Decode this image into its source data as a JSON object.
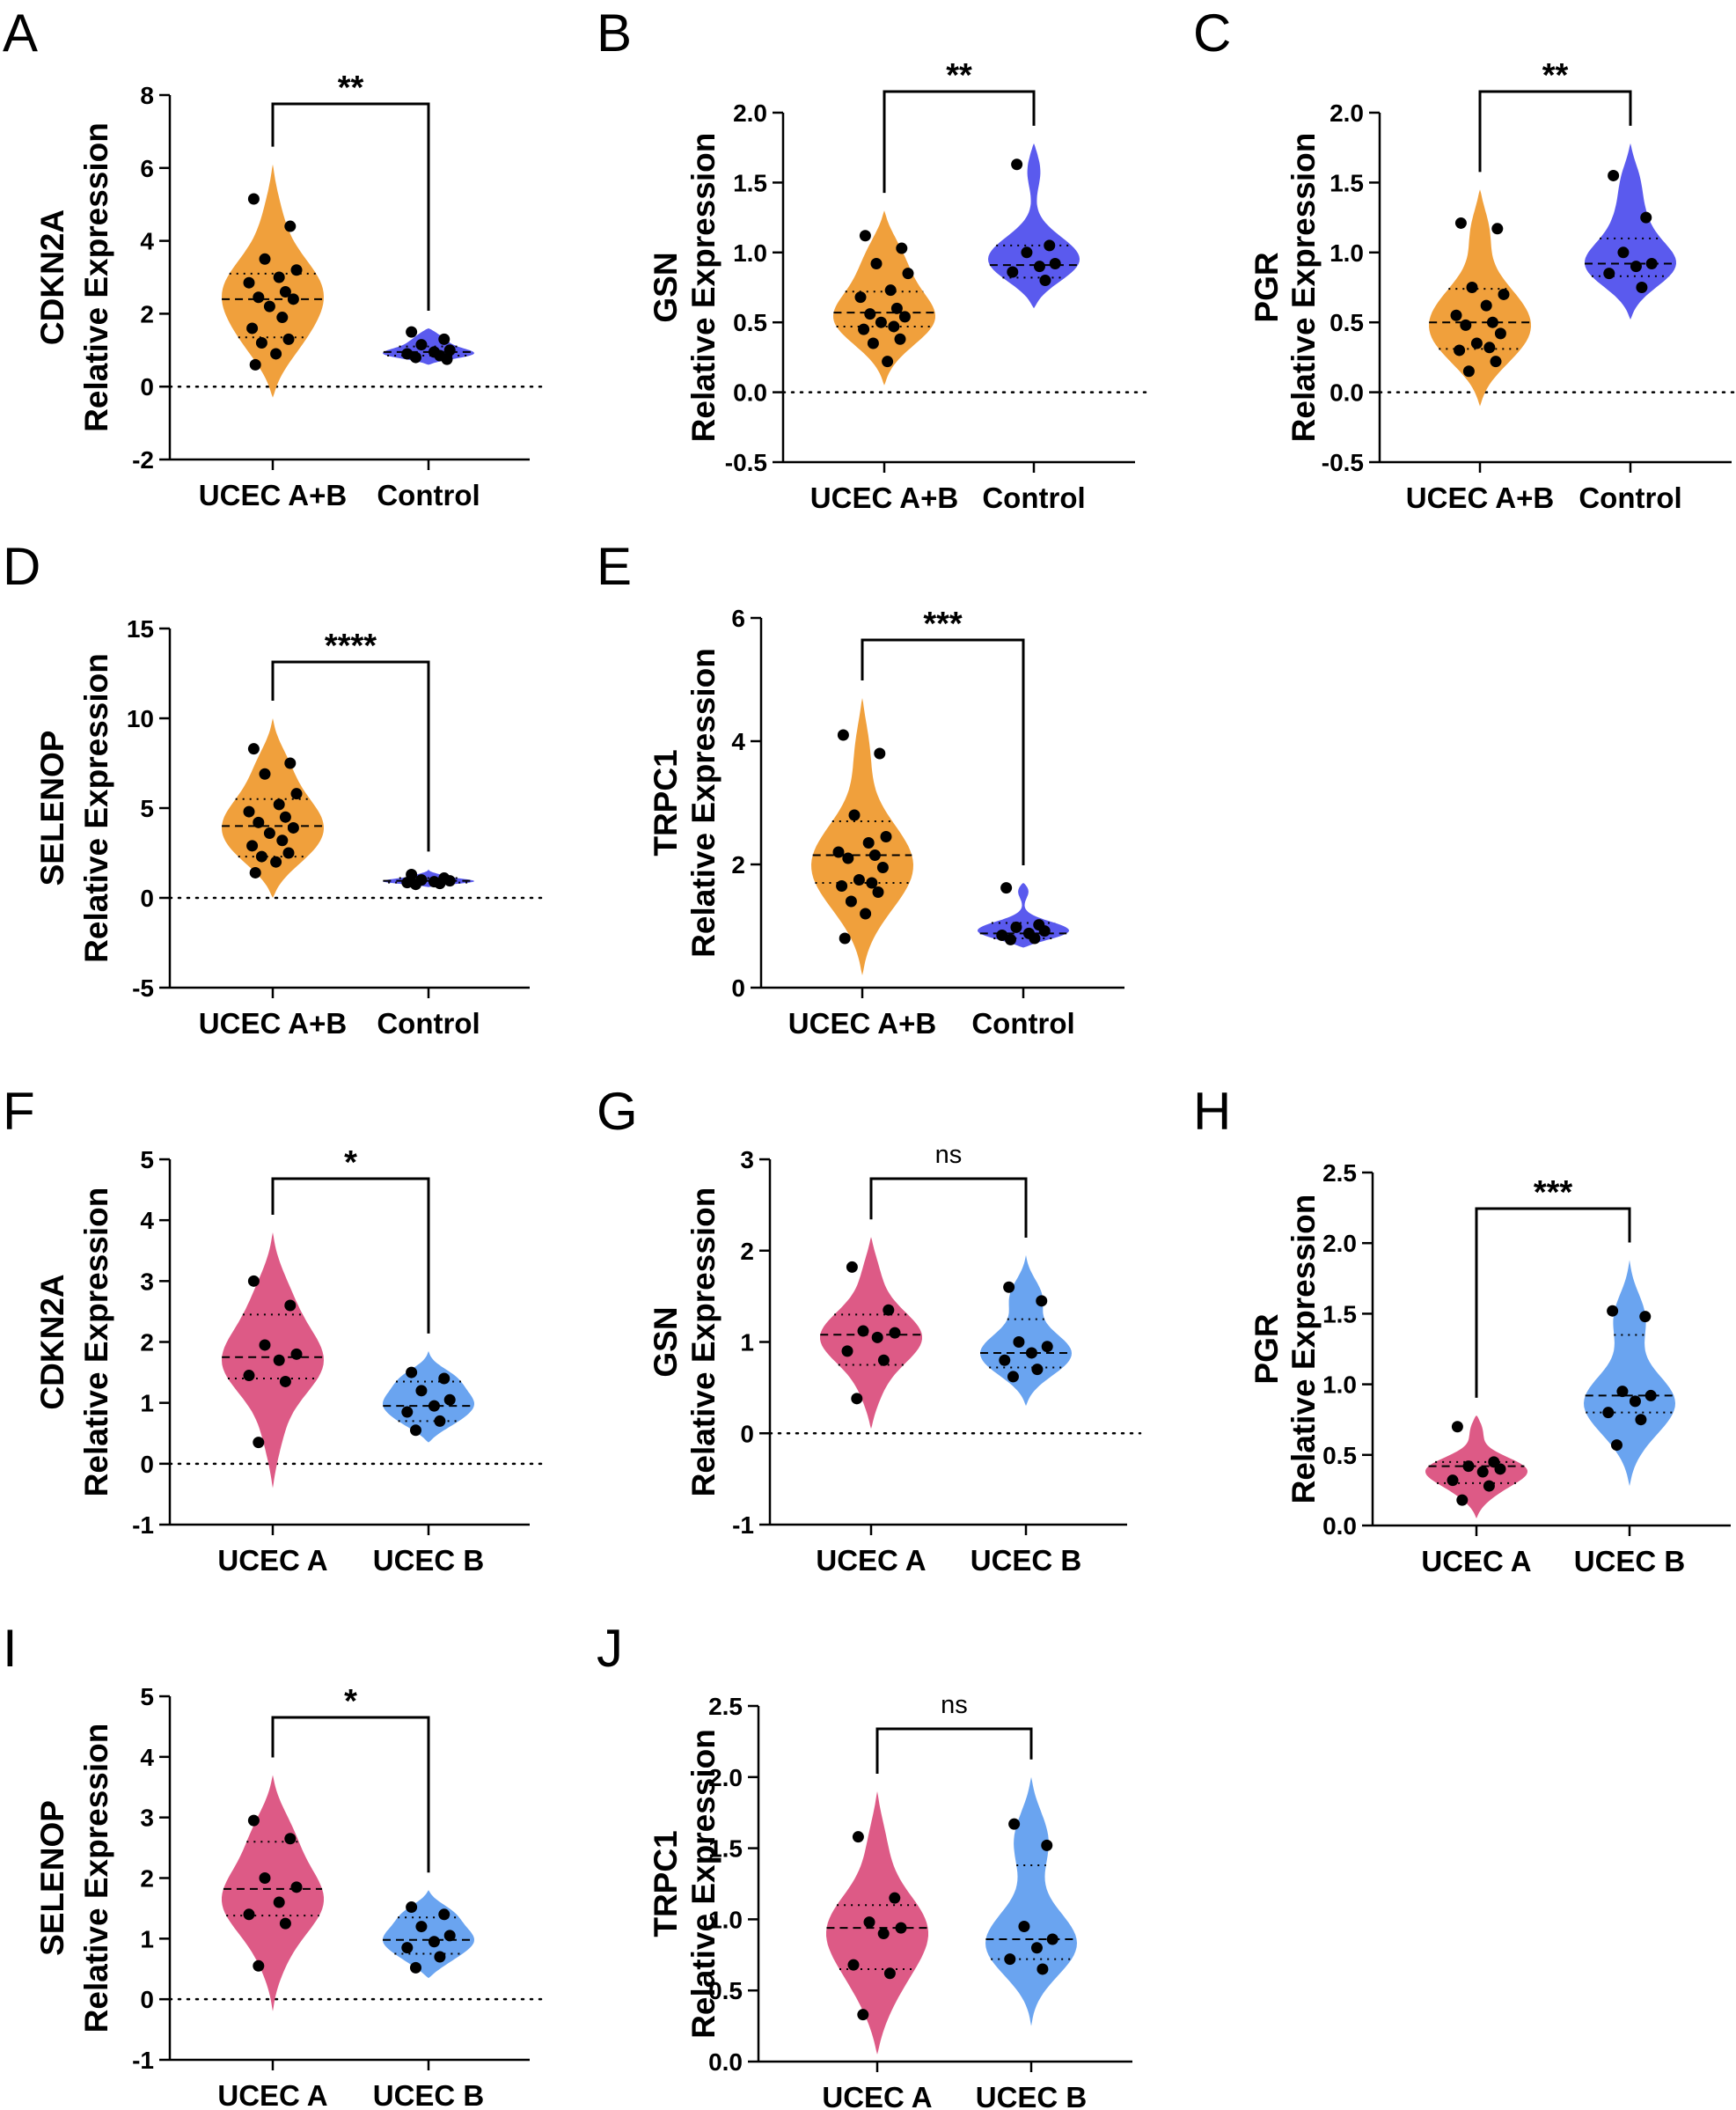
{
  "colors": {
    "ucec_ab": "#f0a03c",
    "control": "#5a5aee",
    "ucec_a": "#dd5a86",
    "ucec_b": "#6aa4f0",
    "point": "#000000",
    "axis": "#000000"
  },
  "chart_data": [
    {
      "panel": "A",
      "type": "violin",
      "ylabel_lines": [
        "CDKN2A",
        "Relative Expression"
      ],
      "ylim": [
        -2,
        8
      ],
      "yticks": [
        8,
        6,
        4,
        2,
        0,
        -2
      ],
      "zero_line": true,
      "significance": "**",
      "groups": [
        {
          "name": "UCEC A+B",
          "color_key": "ucec_ab",
          "median": 2.4,
          "q1": 1.35,
          "q3": 3.1,
          "min": -0.3,
          "max": 6.1,
          "values": [
            5.15,
            4.4,
            3.5,
            3.2,
            3.0,
            2.85,
            2.6,
            2.45,
            2.4,
            2.2,
            1.9,
            1.6,
            1.3,
            1.2,
            0.9,
            0.6
          ]
        },
        {
          "name": "Control",
          "color_key": "control",
          "median": 0.95,
          "q1": 0.85,
          "q3": 1.1,
          "min": 0.6,
          "max": 1.6,
          "values": [
            1.5,
            1.3,
            1.15,
            1.0,
            0.95,
            0.9,
            0.85,
            0.8,
            0.75
          ]
        }
      ]
    },
    {
      "panel": "B",
      "type": "violin",
      "ylabel_lines": [
        "GSN",
        "Relative Expression"
      ],
      "ylim": [
        -0.5,
        2.0
      ],
      "yticks": [
        2.0,
        1.5,
        1.0,
        0.5,
        0.0,
        -0.5
      ],
      "zero_line": true,
      "significance": "**",
      "groups": [
        {
          "name": "UCEC A+B",
          "color_key": "ucec_ab",
          "median": 0.57,
          "q1": 0.47,
          "q3": 0.72,
          "min": 0.05,
          "max": 1.3,
          "values": [
            1.12,
            1.03,
            0.92,
            0.85,
            0.73,
            0.68,
            0.6,
            0.56,
            0.54,
            0.5,
            0.47,
            0.45,
            0.38,
            0.35,
            0.22
          ]
        },
        {
          "name": "Control",
          "color_key": "control",
          "median": 0.91,
          "q1": 0.82,
          "q3": 1.05,
          "min": 0.6,
          "max": 1.78,
          "values": [
            1.63,
            1.05,
            1.0,
            0.92,
            0.9,
            0.86,
            0.8
          ]
        }
      ]
    },
    {
      "panel": "C",
      "type": "violin",
      "ylabel_lines": [
        "PGR",
        "Relative Expression"
      ],
      "ylim": [
        -0.5,
        2.0
      ],
      "yticks": [
        2.0,
        1.5,
        1.0,
        0.5,
        0.0,
        -0.5
      ],
      "zero_line": true,
      "significance": "**",
      "groups": [
        {
          "name": "UCEC A+B",
          "color_key": "ucec_ab",
          "median": 0.5,
          "q1": 0.31,
          "q3": 0.74,
          "min": -0.1,
          "max": 1.45,
          "values": [
            1.21,
            1.17,
            0.75,
            0.7,
            0.62,
            0.55,
            0.5,
            0.48,
            0.42,
            0.35,
            0.32,
            0.3,
            0.22,
            0.15
          ]
        },
        {
          "name": "Control",
          "color_key": "control",
          "median": 0.92,
          "q1": 0.83,
          "q3": 1.1,
          "min": 0.52,
          "max": 1.78,
          "values": [
            1.55,
            1.25,
            1.0,
            0.92,
            0.9,
            0.85,
            0.75
          ]
        }
      ]
    },
    {
      "panel": "D",
      "type": "violin",
      "ylabel_lines": [
        "SELENOP",
        "Relative Expression"
      ],
      "ylim": [
        -5,
        15
      ],
      "yticks": [
        15,
        10,
        5,
        0,
        -5
      ],
      "zero_line": true,
      "significance": "****",
      "groups": [
        {
          "name": "UCEC A+B",
          "color_key": "ucec_ab",
          "median": 4.0,
          "q1": 2.3,
          "q3": 5.5,
          "min": 0.0,
          "max": 10.0,
          "values": [
            8.3,
            7.5,
            6.9,
            5.8,
            5.2,
            4.8,
            4.5,
            4.2,
            3.9,
            3.6,
            3.2,
            2.9,
            2.5,
            2.3,
            2.0,
            1.4
          ]
        },
        {
          "name": "Control",
          "color_key": "control",
          "median": 0.95,
          "q1": 0.85,
          "q3": 1.1,
          "min": 0.6,
          "max": 1.6,
          "values": [
            1.3,
            1.1,
            1.0,
            0.95,
            0.9,
            0.85,
            0.8,
            0.75
          ]
        }
      ]
    },
    {
      "panel": "E",
      "type": "violin",
      "ylabel_lines": [
        "TRPC1",
        "Relative Expression"
      ],
      "ylim": [
        0,
        6
      ],
      "yticks": [
        6,
        4,
        2,
        0
      ],
      "zero_line": false,
      "significance": "***",
      "groups": [
        {
          "name": "UCEC A+B",
          "color_key": "ucec_ab",
          "median": 2.15,
          "q1": 1.7,
          "q3": 2.7,
          "min": 0.2,
          "max": 4.7,
          "values": [
            4.1,
            3.8,
            2.8,
            2.45,
            2.35,
            2.2,
            2.15,
            2.1,
            1.95,
            1.75,
            1.7,
            1.65,
            1.55,
            1.4,
            1.2,
            0.8
          ]
        },
        {
          "name": "Control",
          "color_key": "control",
          "median": 0.88,
          "q1": 0.8,
          "q3": 1.05,
          "min": 0.65,
          "max": 1.7,
          "values": [
            1.62,
            1.02,
            0.98,
            0.92,
            0.88,
            0.85,
            0.8,
            0.78
          ]
        }
      ]
    },
    {
      "panel": "F",
      "type": "violin",
      "ylabel_lines": [
        "CDKN2A",
        "Relative Expression"
      ],
      "ylim": [
        -1,
        5
      ],
      "yticks": [
        5,
        4,
        3,
        2,
        1,
        0,
        -1
      ],
      "zero_line": true,
      "significance": "*",
      "groups": [
        {
          "name": "UCEC A",
          "color_key": "ucec_a",
          "median": 1.75,
          "q1": 1.4,
          "q3": 2.45,
          "min": -0.4,
          "max": 3.8,
          "values": [
            3.0,
            2.6,
            1.95,
            1.8,
            1.7,
            1.45,
            1.35,
            0.35
          ]
        },
        {
          "name": "UCEC B",
          "color_key": "ucec_b",
          "median": 0.95,
          "q1": 0.7,
          "q3": 1.35,
          "min": 0.35,
          "max": 1.85,
          "values": [
            1.5,
            1.4,
            1.2,
            1.05,
            0.95,
            0.85,
            0.7,
            0.55
          ]
        }
      ]
    },
    {
      "panel": "G",
      "type": "violin",
      "ylabel_lines": [
        "GSN",
        "Relative Expression"
      ],
      "ylim": [
        -1,
        3
      ],
      "yticks": [
        3,
        2,
        1,
        0,
        -1
      ],
      "zero_line": true,
      "significance": "ns",
      "groups": [
        {
          "name": "UCEC A",
          "color_key": "ucec_a",
          "median": 1.08,
          "q1": 0.75,
          "q3": 1.3,
          "min": 0.05,
          "max": 2.15,
          "values": [
            1.82,
            1.35,
            1.12,
            1.1,
            1.05,
            0.9,
            0.8,
            0.38
          ]
        },
        {
          "name": "UCEC B",
          "color_key": "ucec_b",
          "median": 0.88,
          "q1": 0.72,
          "q3": 1.25,
          "min": 0.3,
          "max": 1.95,
          "values": [
            1.6,
            1.45,
            1.0,
            0.95,
            0.88,
            0.8,
            0.7,
            0.62
          ]
        }
      ]
    },
    {
      "panel": "H",
      "type": "violin",
      "ylabel_lines": [
        "PGR",
        "Relative Expression"
      ],
      "ylim": [
        0.0,
        2.5
      ],
      "yticks": [
        2.5,
        2.0,
        1.5,
        1.0,
        0.5,
        0.0
      ],
      "zero_line": false,
      "significance": "***",
      "groups": [
        {
          "name": "UCEC A",
          "color_key": "ucec_a",
          "median": 0.42,
          "q1": 0.3,
          "q3": 0.45,
          "min": 0.05,
          "max": 0.78,
          "values": [
            0.7,
            0.45,
            0.42,
            0.4,
            0.38,
            0.32,
            0.28,
            0.18
          ]
        },
        {
          "name": "UCEC B",
          "color_key": "ucec_b",
          "median": 0.92,
          "q1": 0.8,
          "q3": 1.35,
          "min": 0.28,
          "max": 1.88,
          "values": [
            1.52,
            1.48,
            0.95,
            0.92,
            0.88,
            0.8,
            0.75,
            0.57
          ]
        }
      ]
    },
    {
      "panel": "I",
      "type": "violin",
      "ylabel_lines": [
        "SELENOP",
        "Relative Expression"
      ],
      "ylim": [
        -1,
        5
      ],
      "yticks": [
        5,
        4,
        3,
        2,
        1,
        0,
        -1
      ],
      "zero_line": true,
      "significance": "*",
      "groups": [
        {
          "name": "UCEC A",
          "color_key": "ucec_a",
          "median": 1.82,
          "q1": 1.38,
          "q3": 2.6,
          "min": -0.2,
          "max": 3.7,
          "values": [
            2.95,
            2.65,
            2.0,
            1.85,
            1.6,
            1.4,
            1.25,
            0.55
          ]
        },
        {
          "name": "UCEC B",
          "color_key": "ucec_b",
          "median": 0.98,
          "q1": 0.75,
          "q3": 1.35,
          "min": 0.35,
          "max": 1.8,
          "values": [
            1.52,
            1.4,
            1.2,
            1.05,
            0.95,
            0.85,
            0.7,
            0.52
          ]
        }
      ]
    },
    {
      "panel": "J",
      "type": "violin",
      "ylabel_lines": [
        "TRPC1",
        "Relative Expression"
      ],
      "ylim": [
        0.0,
        2.5
      ],
      "yticks": [
        2.5,
        2.0,
        1.5,
        1.0,
        0.5,
        0.0
      ],
      "zero_line": false,
      "significance": "ns",
      "groups": [
        {
          "name": "UCEC A",
          "color_key": "ucec_a",
          "median": 0.94,
          "q1": 0.65,
          "q3": 1.1,
          "min": 0.05,
          "max": 1.9,
          "values": [
            1.58,
            1.15,
            0.98,
            0.94,
            0.9,
            0.68,
            0.62,
            0.33
          ]
        },
        {
          "name": "UCEC B",
          "color_key": "ucec_b",
          "median": 0.86,
          "q1": 0.72,
          "q3": 1.38,
          "min": 0.25,
          "max": 2.0,
          "values": [
            1.67,
            1.52,
            0.95,
            0.86,
            0.8,
            0.72,
            0.65
          ]
        }
      ]
    }
  ]
}
